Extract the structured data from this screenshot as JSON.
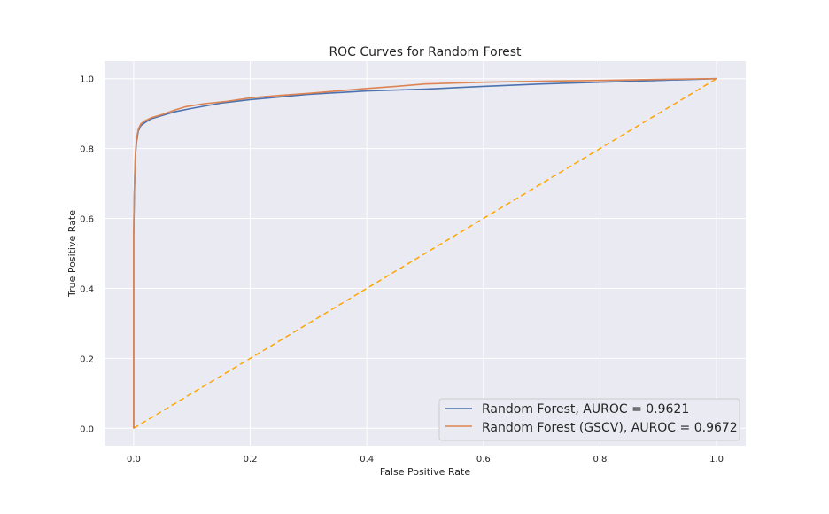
{
  "chart_data": {
    "type": "line",
    "title": "ROC Curves for Random Forest",
    "xlabel": "False Positive Rate",
    "ylabel": "True Positive Rate",
    "xlim": [
      -0.05,
      1.05
    ],
    "ylim": [
      -0.05,
      1.05
    ],
    "xticks": [
      0.0,
      0.2,
      0.4,
      0.6,
      0.8,
      1.0
    ],
    "xtick_labels": [
      "0.0",
      "0.2",
      "0.4",
      "0.6",
      "0.8",
      "1.0"
    ],
    "yticks": [
      0.0,
      0.2,
      0.4,
      0.6,
      0.8,
      1.0
    ],
    "ytick_labels": [
      "0.0",
      "0.2",
      "0.4",
      "0.6",
      "0.8",
      "1.0"
    ],
    "grid": true,
    "legend_position": "bottom-right",
    "series": [
      {
        "name": "Random Forest, AUROC = 0.9621",
        "color": "#4c72b0",
        "style": "solid",
        "x": [
          0.0,
          0.0,
          0.001,
          0.002,
          0.003,
          0.005,
          0.008,
          0.012,
          0.02,
          0.03,
          0.05,
          0.07,
          0.1,
          0.15,
          0.2,
          0.3,
          0.4,
          0.5,
          0.6,
          0.7,
          0.8,
          0.9,
          1.0
        ],
        "y": [
          0.0,
          0.55,
          0.66,
          0.73,
          0.78,
          0.82,
          0.85,
          0.865,
          0.875,
          0.885,
          0.895,
          0.905,
          0.915,
          0.93,
          0.94,
          0.955,
          0.965,
          0.97,
          0.978,
          0.985,
          0.99,
          0.995,
          1.0
        ]
      },
      {
        "name": "Random Forest (GSCV), AUROC = 0.9672",
        "color": "#dd8452",
        "style": "solid",
        "x": [
          0.0,
          0.0,
          0.001,
          0.002,
          0.003,
          0.005,
          0.008,
          0.012,
          0.02,
          0.03,
          0.05,
          0.07,
          0.09,
          0.12,
          0.16,
          0.2,
          0.25,
          0.3,
          0.35,
          0.4,
          0.45,
          0.5,
          0.6,
          0.7,
          0.8,
          0.9,
          1.0
        ],
        "y": [
          0.0,
          0.56,
          0.67,
          0.74,
          0.79,
          0.83,
          0.855,
          0.87,
          0.88,
          0.888,
          0.898,
          0.91,
          0.92,
          0.928,
          0.935,
          0.945,
          0.952,
          0.958,
          0.965,
          0.972,
          0.978,
          0.985,
          0.99,
          0.993,
          0.995,
          0.998,
          1.0
        ]
      },
      {
        "name": "",
        "color": "#ffa500",
        "style": "dashed",
        "x": [
          0.0,
          1.0
        ],
        "y": [
          0.0,
          1.0
        ]
      }
    ]
  }
}
